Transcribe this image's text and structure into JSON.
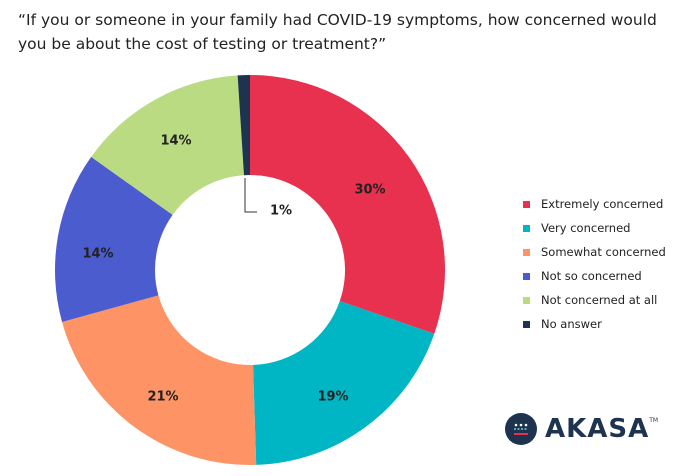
{
  "chart_data": {
    "type": "pie",
    "donut": true,
    "title": "“If you or someone in your family had COVID-19 symptoms, how concerned would you be about the cost of testing or treatment?”",
    "categories": [
      "Extremely concerned",
      "Very concerned",
      "Somewhat concerned",
      "Not so concerned",
      "Not concerned at all",
      "No answer"
    ],
    "values": [
      30,
      19,
      21,
      14,
      14,
      1
    ],
    "data_labels": [
      "30%",
      "19%",
      "21%",
      "14%",
      "14%",
      "1%"
    ],
    "colors": [
      "#e8304f",
      "#00b5c4",
      "#fe9466",
      "#4b5ccf",
      "#bbdb83",
      "#1d3350"
    ],
    "legend_position": "right"
  },
  "logo": {
    "text": "AKASA",
    "tm": "TM"
  }
}
